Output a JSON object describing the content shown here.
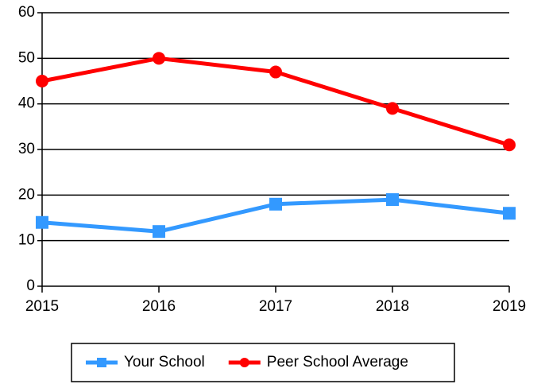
{
  "chart_data": {
    "type": "line",
    "x": [
      2015,
      2016,
      2017,
      2018,
      2019
    ],
    "xlim": [
      2015,
      2019
    ],
    "xticks": [
      2015,
      2016,
      2017,
      2018,
      2019
    ],
    "ylim": [
      0,
      60
    ],
    "yticks": [
      0,
      10,
      20,
      30,
      40,
      50,
      60
    ],
    "grid": true,
    "legend": "bottom",
    "series": [
      {
        "name": "Your School",
        "color": "#3399ff",
        "marker": "square",
        "values": [
          14,
          12,
          18,
          19,
          16
        ]
      },
      {
        "name": "Peer School Average",
        "color": "#ff0000",
        "marker": "circle",
        "values": [
          45,
          50,
          47,
          39,
          31
        ]
      }
    ]
  }
}
